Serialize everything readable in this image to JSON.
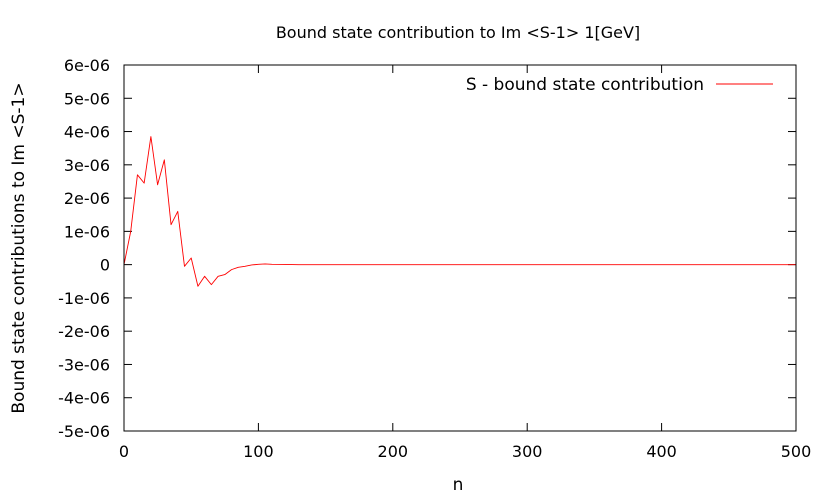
{
  "chart_data": {
    "type": "line",
    "title": "Bound state contribution to Im <S-1> 1[GeV]",
    "xlabel": "n",
    "ylabel": "Bound state contributions to Im <S-1>",
    "xlim": [
      0,
      500
    ],
    "ylim": [
      -5e-06,
      6e-06
    ],
    "x_ticks": [
      0,
      100,
      200,
      300,
      400,
      500
    ],
    "x_tick_labels": [
      "0",
      "100",
      "200",
      "300",
      "400",
      "500"
    ],
    "y_ticks": [
      -5e-06,
      -4e-06,
      -3e-06,
      -2e-06,
      -1e-06,
      0,
      1e-06,
      2e-06,
      3e-06,
      4e-06,
      5e-06,
      6e-06
    ],
    "y_tick_labels": [
      "-5e-06",
      "-4e-06",
      "-3e-06",
      "-2e-06",
      "-1e-06",
      "0",
      "1e-06",
      "2e-06",
      "3e-06",
      "4e-06",
      "5e-06",
      "6e-06"
    ],
    "grid": false,
    "legend_position": "top-right",
    "series": [
      {
        "name": "S - bound state contribution",
        "color": "#ff0000",
        "x": [
          0,
          5,
          10,
          15,
          20,
          25,
          30,
          35,
          40,
          45,
          50,
          55,
          60,
          65,
          70,
          75,
          80,
          85,
          90,
          95,
          100,
          105,
          110,
          120,
          130,
          150,
          200,
          300,
          400,
          500
        ],
        "y": [
          0,
          1e-06,
          2.7e-06,
          2.45e-06,
          3.85e-06,
          2.4e-06,
          3.15e-06,
          1.2e-06,
          1.6e-06,
          -5e-08,
          2e-07,
          -6.5e-07,
          -3.5e-07,
          -6e-07,
          -3.5e-07,
          -3e-07,
          -1.5e-07,
          -8e-08,
          -5e-08,
          -1e-08,
          1e-08,
          2e-08,
          1e-08,
          5e-09,
          0,
          0,
          0,
          0,
          0,
          0
        ]
      }
    ]
  }
}
